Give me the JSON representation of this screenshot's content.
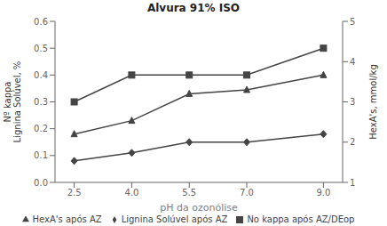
{
  "chart_data": {
    "type": "line",
    "title": "Alvura 91% ISO",
    "x_label": "pH da ozonólise",
    "y_label": "Nº kappa\nLignina Solúvel, %",
    "y2_label": "HexA's, mmol/kg",
    "x": [
      2.5,
      4.0,
      5.5,
      7.0,
      9.0
    ],
    "series": [
      {
        "name": "No kappa após AZ/DEop",
        "color": "#444444",
        "marker": "square",
        "values": [
          0.3,
          0.4,
          0.4,
          0.4,
          0.5
        ]
      },
      {
        "name": "Lignina Solúvel após AZ",
        "color": "#444444",
        "marker": "diamond",
        "values": [
          0.08,
          0.11,
          0.15,
          0.15,
          0.18
        ]
      },
      {
        "name": "HexA's após AZ",
        "color": "#444444",
        "marker": "triangle",
        "values": [
          0.18,
          0.23,
          0.33,
          0.345,
          0.4
        ]
      }
    ],
    "xlim": [
      2.0,
      9.5
    ],
    "xticks": [
      2.5,
      {
        "value": 4.0,
        "label": "4.0"
      },
      5.5,
      {
        "value": 7.0,
        "label": "7.0"
      },
      {
        "value": 9.0,
        "label": "9.0"
      }
    ],
    "ylim": [
      0.0,
      0.6
    ],
    "yticks": [
      {
        "value": 0.0,
        "label": "0.0"
      },
      0.1,
      0.2,
      0.3,
      0.4,
      0.5,
      0.6
    ],
    "y2lim": [
      1.0,
      5.0
    ],
    "y2ticks": [
      1,
      2,
      3,
      4,
      5
    ],
    "grid": false,
    "legend": "bottom"
  }
}
